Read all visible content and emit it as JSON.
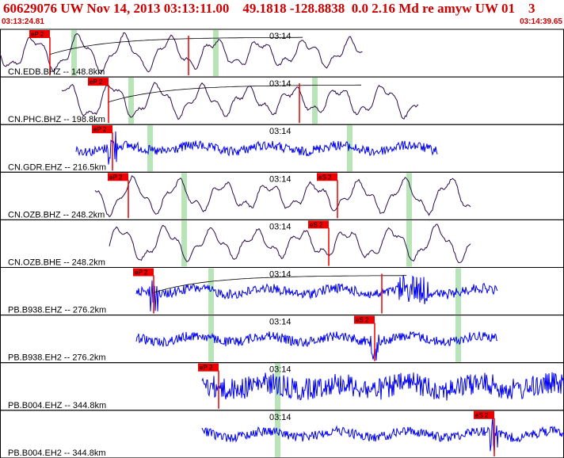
{
  "header": {
    "title": "60629076 UW Nov 14, 2013 03:13:11.00    49.1818 -128.8838  0.0 2.16 Md re amyw UW 01    3",
    "time_start": "03:13:24.81",
    "time_end": "03:14:39.65"
  },
  "colors": {
    "header_red": "#cc0000",
    "pick_red": "#ee0000",
    "trace_purple": "#2a0a4a",
    "trace_blue": "#0000ee",
    "green_marker": "#b8e4b8"
  },
  "traces": [
    {
      "label": "CN.EDB.BHZ -- 148.8km",
      "time_mark": "03:14",
      "type": "long",
      "color": "purple",
      "picks": [
        {
          "text": "eP 2",
          "x": 37
        },
        {
          "text": "",
          "x": 238
        }
      ],
      "greens": [
        93,
        272
      ],
      "start": 0,
      "end": 458,
      "decay": true
    },
    {
      "label": "CN.PHC.BHZ -- 198.8km",
      "time_mark": "03:14",
      "type": "long",
      "color": "purple",
      "picks": [
        {
          "text": "eP 2",
          "x": 111
        },
        {
          "text": "",
          "x": 378
        }
      ],
      "greens": [
        165,
        397
      ],
      "start": 78,
      "end": 528,
      "decay": true
    },
    {
      "label": "CN.GDR.EHZ -- 216.5km",
      "time_mark": "03:14",
      "type": "short",
      "color": "blue",
      "picks": [
        {
          "text": "eP 2",
          "x": 116
        }
      ],
      "greens": [
        189,
        441
      ],
      "start": 96,
      "end": 552,
      "decay": false
    },
    {
      "label": "CN.OZB.BHZ -- 248.2km",
      "time_mark": "03:14",
      "type": "long",
      "color": "purple",
      "picks": [
        {
          "text": "eP 2",
          "x": 136
        },
        {
          "text": "eS 2",
          "x": 400
        }
      ],
      "greens": [
        232,
        516
      ],
      "start": 120,
      "end": 594,
      "decay": false
    },
    {
      "label": "CN.OZB.BHE -- 248.2km",
      "time_mark": "03:14",
      "type": "long",
      "color": "purple",
      "picks": [
        {
          "text": "eS 2",
          "x": 389
        }
      ],
      "greens": [
        232,
        516
      ],
      "start": 138,
      "end": 594,
      "decay": false
    },
    {
      "label": "PB.B938.EHZ -- 276.2km",
      "time_mark": "03:14",
      "type": "short",
      "color": "blue",
      "picks": [
        {
          "text": "eP 2",
          "x": 168
        },
        {
          "text": "",
          "x": 482
        }
      ],
      "greens": [
        266,
        578
      ],
      "start": 172,
      "end": 628,
      "decay": true
    },
    {
      "label": "PB.B938.EH2 -- 276.2km",
      "time_mark": "03:14",
      "type": "short",
      "color": "blue",
      "picks": [
        {
          "text": "eS 2",
          "x": 447
        }
      ],
      "greens": [
        266,
        578
      ],
      "start": 172,
      "end": 628,
      "decay": false
    },
    {
      "label": "PB.B004.EHZ -- 344.8km",
      "time_mark": "03:14",
      "type": "short",
      "color": "blue",
      "picks": [
        {
          "text": "eP 2",
          "x": 250
        }
      ],
      "greens": [
        350
      ],
      "start": 255,
      "end": 712,
      "decay": false
    },
    {
      "label": "PB.B004.EH2 -- 344.8km",
      "time_mark": "03:14",
      "type": "short",
      "color": "blue",
      "picks": [
        {
          "text": "eS 2",
          "x": 598
        }
      ],
      "greens": [
        350
      ],
      "start": 255,
      "end": 712,
      "decay": false
    }
  ]
}
